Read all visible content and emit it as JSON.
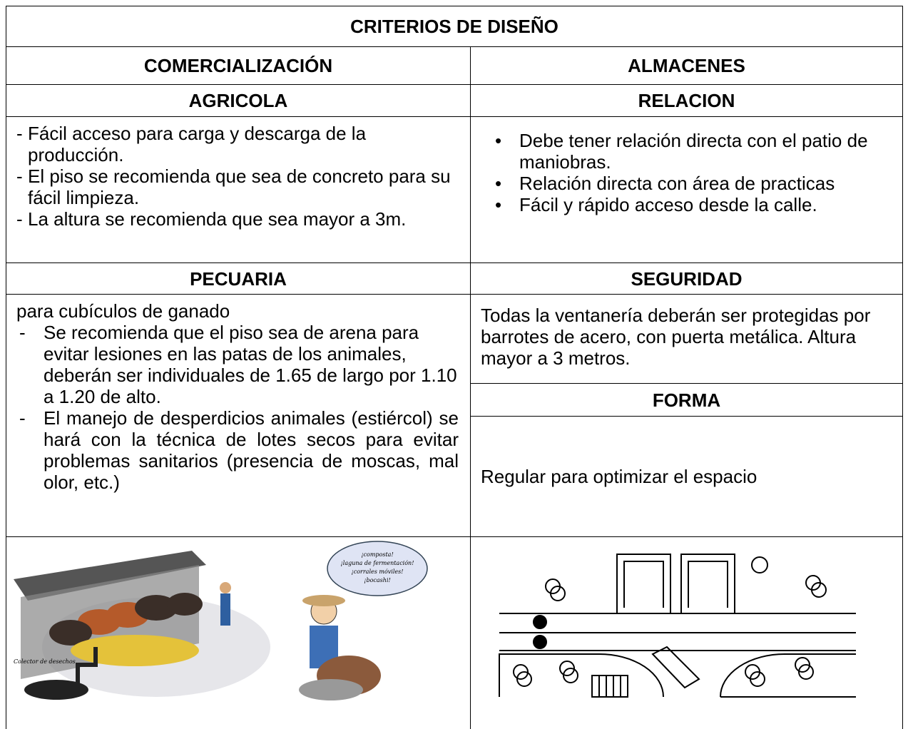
{
  "header": {
    "title": "CRITERIOS DE DISEÑO"
  },
  "columns": [
    "COMERCIALIZACIÓN",
    "ALMACENES"
  ],
  "left": {
    "sections": [
      {
        "title": "AGRICOLA",
        "items": [
          "Fácil acceso para carga y descarga de la producción.",
          "El piso se recomienda que sea de concreto para su fácil limpieza.",
          "La altura se recomienda que sea mayor a 3m."
        ]
      },
      {
        "title": "PECUARIA",
        "intro": "para cubículos de ganado",
        "items": [
          "Se recomienda que el piso sea de arena para evitar lesiones en las patas de los animales, deberán ser individuales de 1.65 de largo por 1.10 a 1.20 de alto.",
          "El manejo de desperdicios animales (estiércol) se hará con la técnica de lotes secos para evitar problemas sanitarios (presencia de moscas, mal olor, etc.)"
        ]
      }
    ]
  },
  "right": {
    "sections": [
      {
        "title": "RELACION",
        "items": [
          "Debe tener relación directa con el patio de maniobras.",
          "Relación directa con área de practicas",
          "Fácil y rápido acceso desde la calle."
        ]
      },
      {
        "title": "SEGURIDAD",
        "text": "Todas la ventanería deberán ser protegidas por barrotes de acero, con puerta metálica. Altura mayor  a 3 metros."
      },
      {
        "title": "FORMA",
        "text": "Regular para optimizar el espacio"
      }
    ]
  },
  "figures": {
    "label": "Colector de desechos",
    "bubble": [
      "¡composta!",
      "¡laguna de fermentación!",
      "¡corrales móviles!",
      "¡bocashi!"
    ]
  }
}
